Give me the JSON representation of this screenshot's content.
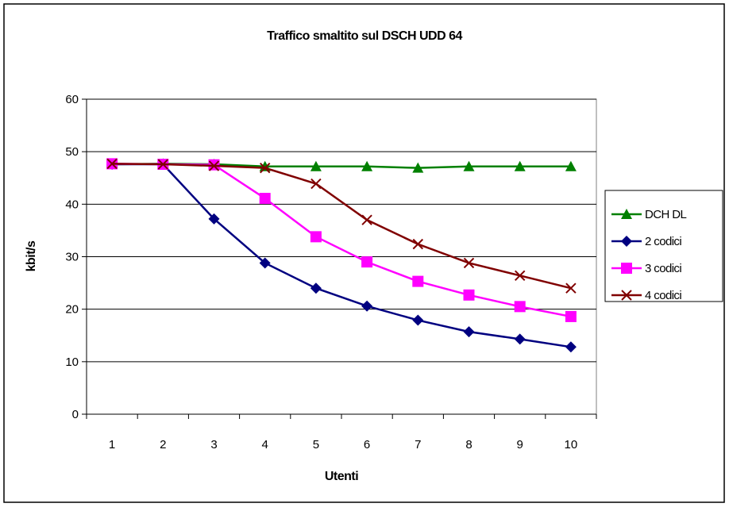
{
  "chart_data": {
    "type": "line",
    "title": "Traffico smaltito sul DSCH UDD 64",
    "xlabel": "Utenti",
    "ylabel": "kbit/s",
    "categories": [
      "1",
      "2",
      "3",
      "4",
      "5",
      "6",
      "7",
      "8",
      "9",
      "10"
    ],
    "ylim": [
      0,
      60
    ],
    "yticks": [
      0,
      10,
      20,
      30,
      40,
      50,
      60
    ],
    "grid": true,
    "legend_position": "right",
    "series": [
      {
        "name": "DCH DL",
        "color": "#008000",
        "marker": "triangle",
        "values": [
          47.6,
          47.7,
          47.6,
          47.2,
          47.2,
          47.2,
          46.9,
          47.2,
          47.2,
          47.2
        ]
      },
      {
        "name": "2 codici",
        "color": "#000080",
        "marker": "diamond",
        "values": [
          47.6,
          47.6,
          37.2,
          28.8,
          24.0,
          20.6,
          17.9,
          15.7,
          14.3,
          12.8
        ]
      },
      {
        "name": "3 codici",
        "color": "#ff00ff",
        "marker": "square",
        "values": [
          47.7,
          47.6,
          47.5,
          41.1,
          33.8,
          29.0,
          25.3,
          22.7,
          20.5,
          18.6
        ]
      },
      {
        "name": "4 codici",
        "color": "#800000",
        "marker": "x",
        "values": [
          47.7,
          47.6,
          47.3,
          46.9,
          43.9,
          37.0,
          32.4,
          28.8,
          26.4,
          24.0
        ]
      }
    ]
  }
}
